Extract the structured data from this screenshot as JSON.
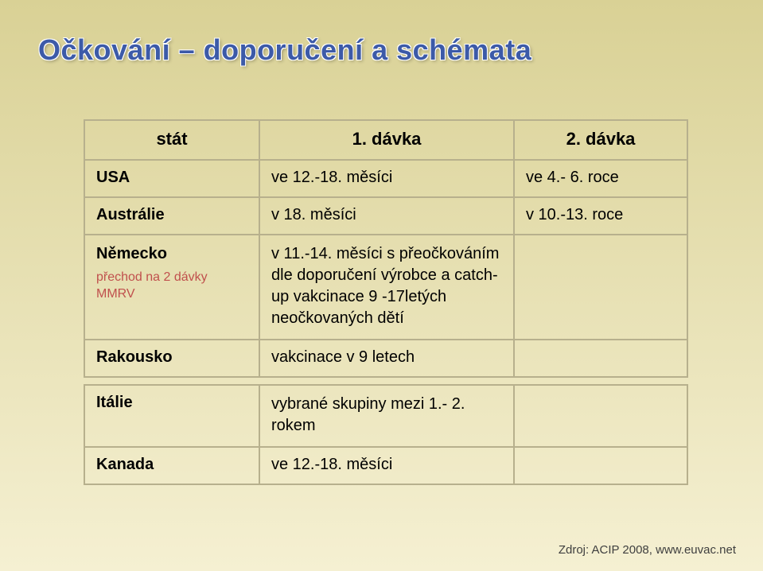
{
  "title": "Očkování – doporučení a schémata",
  "columns": {
    "c1": "stát",
    "c2": "1. dávka",
    "c3": "2. dávka"
  },
  "rows": {
    "usa": {
      "state": "USA",
      "d1": "ve 12.-18. měsíci",
      "d2": "ve 4.- 6. roce"
    },
    "aus": {
      "state": "Austrálie",
      "d1": "v 18. měsíci",
      "d2": "v 10.-13. roce"
    },
    "ger": {
      "state": "Německo",
      "mmrv": "přechod na 2 dávky MMRV",
      "d1": "v 11.-14. měsíci s přeočkováním dle doporučení výrobce a catch-up vakcinace 9 -17letých neočkovaných dětí",
      "d2": ""
    },
    "aut": {
      "state": "Rakousko",
      "d1": "vakcinace v 9 letech",
      "d2": ""
    },
    "ita": {
      "state": "Itálie",
      "d1": "vybrané skupiny mezi 1.- 2. rokem",
      "d2": ""
    },
    "can": {
      "state": "Kanada",
      "d1": "ve 12.-18. měsíci",
      "d2": ""
    }
  },
  "source": "Zdroj: ACIP 2008, www.euvac.net",
  "colors": {
    "title": "#3c5aa8",
    "mmrv_red": "#c0504d",
    "border": "#b7b08d",
    "bg_top": "#d9d195",
    "bg_bottom": "#f5f0d2"
  }
}
